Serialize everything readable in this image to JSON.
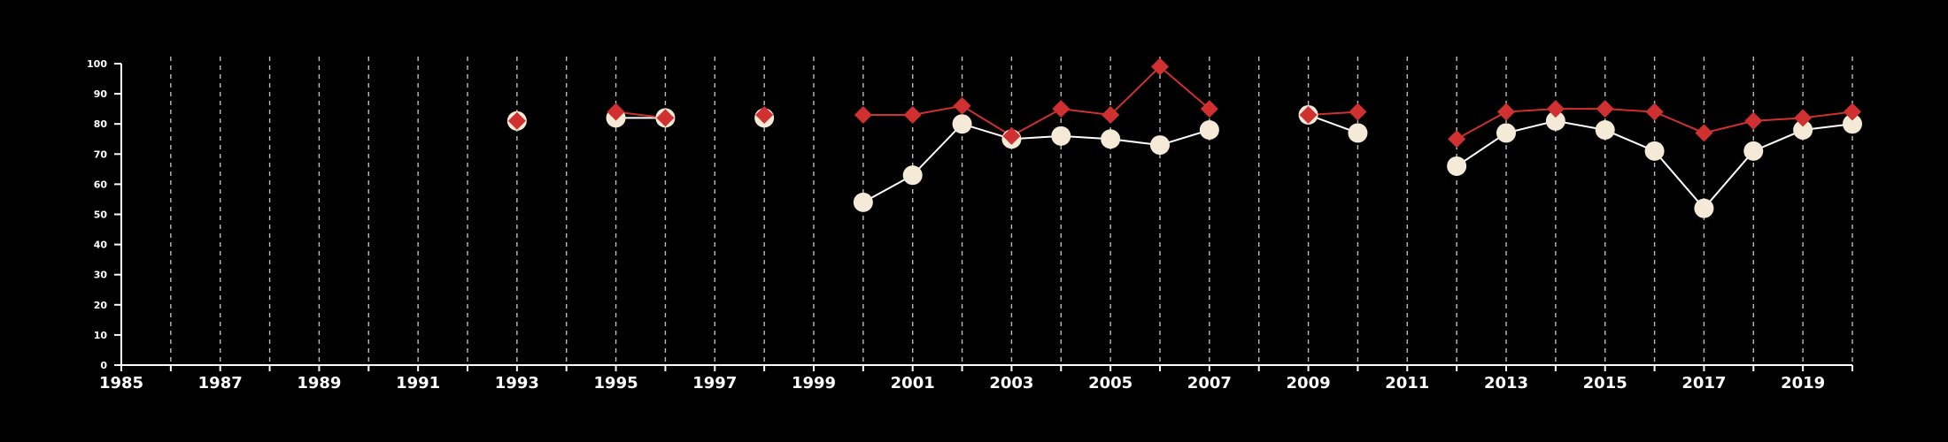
{
  "chart_data": {
    "type": "line",
    "title": "",
    "xlabel": "",
    "ylabel": "",
    "xlim": [
      1985,
      2020
    ],
    "ylim": [
      0,
      100
    ],
    "x_ticks": [
      1985,
      1987,
      1989,
      1991,
      1993,
      1995,
      1997,
      1999,
      2001,
      2003,
      2005,
      2007,
      2009,
      2011,
      2013,
      2015,
      2017,
      2019
    ],
    "y_ticks": [
      0,
      10,
      20,
      30,
      40,
      50,
      60,
      70,
      80,
      90,
      100
    ],
    "vertical_grid": "dashed lines at every year",
    "background": "#000000",
    "series": [
      {
        "marker": "circle",
        "color": "#f5ead8",
        "line_color": "#ffffff",
        "points": [
          [
            1993,
            81
          ],
          [
            1995,
            82
          ],
          [
            1996,
            82
          ],
          [
            1998,
            82
          ],
          [
            2000,
            54
          ],
          [
            2001,
            63
          ],
          [
            2002,
            80
          ],
          [
            2003,
            75
          ],
          [
            2004,
            76
          ],
          [
            2005,
            75
          ],
          [
            2006,
            73
          ],
          [
            2007,
            78
          ],
          [
            2009,
            83
          ],
          [
            2010,
            77
          ],
          [
            2012,
            66
          ],
          [
            2013,
            77
          ],
          [
            2014,
            81
          ],
          [
            2015,
            78
          ],
          [
            2016,
            71
          ],
          [
            2017,
            52
          ],
          [
            2018,
            71
          ],
          [
            2019,
            78
          ],
          [
            2020,
            80
          ]
        ]
      },
      {
        "marker": "diamond",
        "color": "#d0302f",
        "line_color": "#d0302f",
        "points": [
          [
            1993,
            81
          ],
          [
            1995,
            84
          ],
          [
            1996,
            82
          ],
          [
            1998,
            83
          ],
          [
            2000,
            83
          ],
          [
            2001,
            83
          ],
          [
            2002,
            86
          ],
          [
            2003,
            76
          ],
          [
            2004,
            85
          ],
          [
            2005,
            83
          ],
          [
            2006,
            99
          ],
          [
            2007,
            85
          ],
          [
            2009,
            83
          ],
          [
            2010,
            84
          ],
          [
            2012,
            75
          ],
          [
            2013,
            84
          ],
          [
            2014,
            85
          ],
          [
            2015,
            85
          ],
          [
            2016,
            84
          ],
          [
            2017,
            77
          ],
          [
            2018,
            81
          ],
          [
            2019,
            82
          ],
          [
            2020,
            84
          ]
        ]
      }
    ]
  }
}
